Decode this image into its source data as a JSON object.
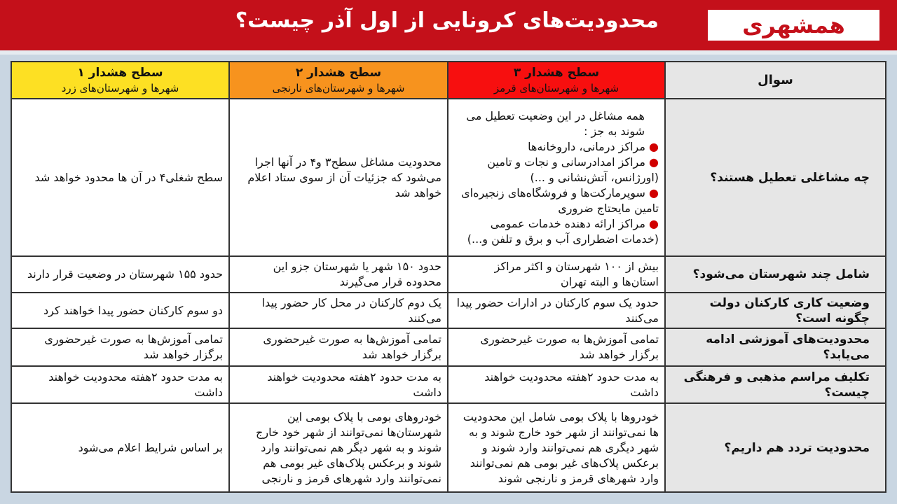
{
  "header": {
    "title": "محدودیت‌های کرونایی از اول آذر چیست؟",
    "logo_text": "همشهری",
    "colors": {
      "banner": "#c4101a",
      "level3": "#f70f0f",
      "level2": "#f7931e",
      "level1": "#fde023"
    }
  },
  "columns": [
    {
      "label": "سوال"
    },
    {
      "label": "سطح هشدار ۳",
      "sub": "شهرها و شهرستان‌های قرمز"
    },
    {
      "label": "سطح هشدار ۲",
      "sub": "شهرها و شهرستان‌های نارنجی"
    },
    {
      "label": "سطح هشدار ۱",
      "sub": "شهرها و شهرستان‌های زرد"
    }
  ],
  "rows": [
    {
      "q": "چه مشاغلی تعطیل هستند؟",
      "l3_intro": "همه مشاغل در این وضعیت تعطیل می شوند به جز :",
      "l3_items": [
        "مراکز درمانی، داروخانه‌ها",
        "مراکز امدادرسانی و نجات و تامین (اورژانس، آتش‌نشانی و ...)",
        "سوپرمارکت‌ها و فروشگاه‌های زنجیره‌ای تامین مایحتاج ضروری",
        "مراکز ارائه دهنده خدمات عمومی (خدمات اضطراری آب و برق و تلفن و...)"
      ],
      "l2": "محدودیت مشاغل سطح۳ و۴ در آنها اجرا می‌شود که جزئیات آن از سوی ستاد اعلام خواهد شد",
      "l1": "سطح شغلی۴ در آن ها محدود خواهد شد"
    },
    {
      "q": "شامل چند شهرستان می‌شود؟",
      "l3": "بیش از ۱۰۰ شهرستان و اکثر مراکز استان‌ها و البته تهران",
      "l2": "حدود ۱۵۰ شهر یا شهرستان جزو این محدوده قرار می‌گیرند",
      "l1": "حدود ۱۵۵ شهرستان در وضعیت قرار دارند"
    },
    {
      "q": "وضعیت کاری کارکنان دولت چگونه است؟",
      "l3": "حدود یک سوم کارکنان در ادارات حضور پیدا می‌کنند",
      "l2": "یک دوم کارکنان در محل کار حضور پیدا می‌کنند",
      "l1": "دو سوم کارکنان حضور پیدا خواهند کرد"
    },
    {
      "q": "محدودیت‌های آموزشی ادامه می‌یابد؟",
      "l3": "تمامی آموزش‌ها به صورت غیرحضوری برگزار خواهد شد",
      "l2": "تمامی آموزش‌ها به صورت غیرحضوری برگزار خواهد شد",
      "l1": "تمامی آموزش‌ها به صورت غیرحضوری برگزار خواهد شد"
    },
    {
      "q": "تکلیف مراسم مذهبی و فرهنگی چیست؟",
      "l3": "به مدت حدود ۲هفته محدودیت خواهند داشت",
      "l2": "به مدت حدود ۲هفته محدودیت خواهند داشت",
      "l1": "به مدت حدود ۲هفته محدودیت خواهند داشت"
    },
    {
      "q": "محدودیت تردد هم داریم؟",
      "l3": "خودروها با پلاک بومی شامل این محدودیت ها نمی‌توانند از شهر خود خارج شوند و به شهر دیگری هم نمی‌توانند وارد شوند و برعکس پلاک‌های غیر بومی هم نمی‌توانند وارد شهرهای قرمز و نارنجی شوند",
      "l2": "خودروهای بومی با پلاک بومی این شهرستان‌ها نمی‌توانند از شهر خود خارج شوند و به شهر دیگر هم نمی‌توانند وارد شوند و برعکس پلاک‌های غیر بومی هم نمی‌توانند وارد شهرهای قرمز و نارنجی",
      "l1": "بر اساس شرایط اعلام می‌شود"
    }
  ]
}
